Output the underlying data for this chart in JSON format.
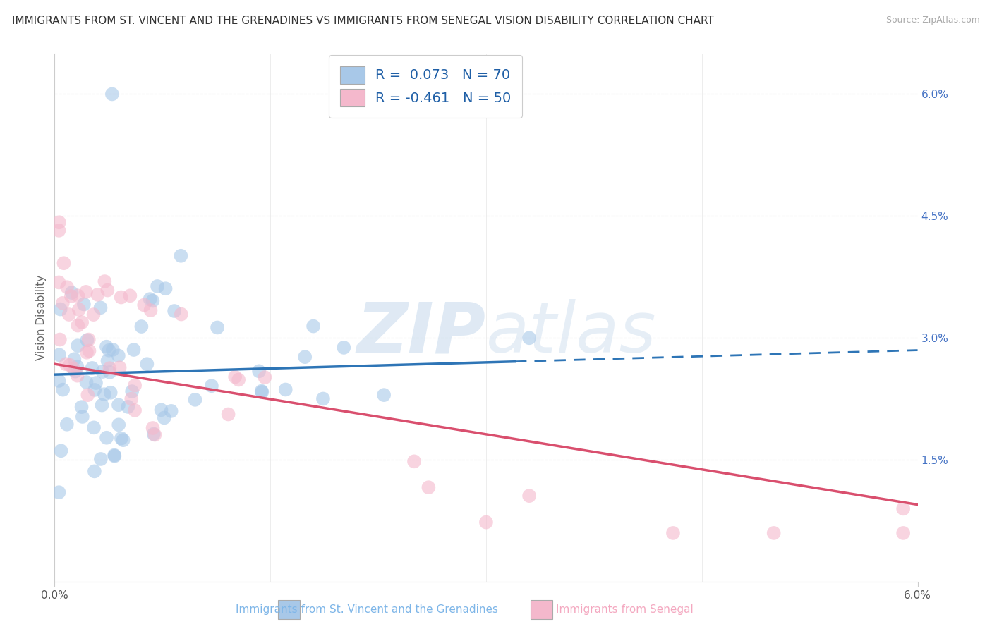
{
  "title": "IMMIGRANTS FROM ST. VINCENT AND THE GRENADINES VS IMMIGRANTS FROM SENEGAL VISION DISABILITY CORRELATION CHART",
  "source": "Source: ZipAtlas.com",
  "ylabel": "Vision Disability",
  "xlim": [
    0.0,
    0.06
  ],
  "ylim": [
    0.0,
    0.065
  ],
  "legend_label_blue": "R =  0.073   N = 70",
  "legend_label_pink": "R = -0.461   N = 50",
  "blue_color": "#A8C8E8",
  "pink_color": "#F4B8CC",
  "trend_blue_color": "#2E75B6",
  "trend_pink_color": "#D94F6E",
  "watermark": "ZIPatlas",
  "blue_N": 70,
  "pink_N": 50,
  "blue_trend_y0": 0.0255,
  "blue_trend_y1": 0.0285,
  "blue_trend_solid_end": 0.032,
  "pink_trend_y0": 0.0268,
  "pink_trend_y1": 0.0095,
  "grid_color": "#CCCCCC",
  "bg_color": "#FFFFFF",
  "title_fontsize": 11,
  "label_fontsize": 11,
  "tick_fontsize": 11,
  "bottom_label_blue": "Immigrants from St. Vincent and the Grenadines",
  "bottom_label_pink": "Immigrants from Senegal"
}
